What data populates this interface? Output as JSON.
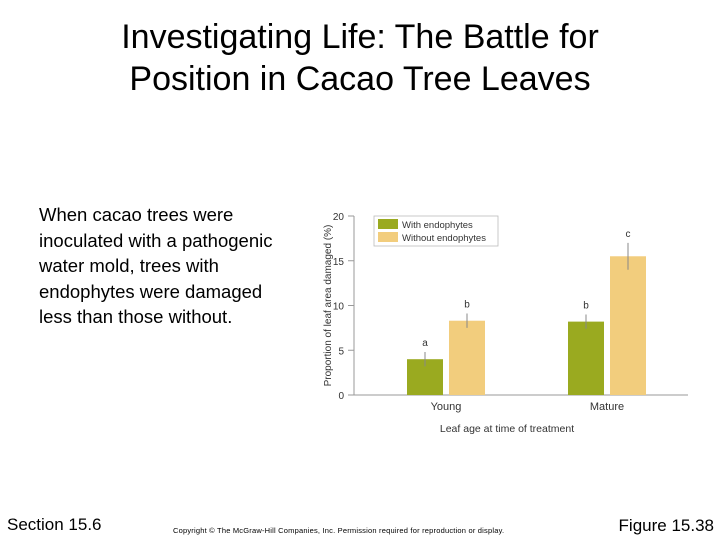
{
  "slide": {
    "title_lines": [
      "Investigating Life: The Battle for",
      "Position in Cacao Tree Leaves"
    ],
    "body": "When cacao trees were inoculated with a pathogenic water mold, trees with endophytes were damaged less than those without.",
    "section": "Section 15.6",
    "copyright": "Copyright © The McGraw-Hill Companies, Inc. Permission required for reproduction or display.",
    "figure": "Figure 15.38"
  },
  "chart_data": {
    "type": "bar",
    "categories": [
      "Young",
      "Mature"
    ],
    "series": [
      {
        "name": "With endophytes",
        "color": "#9aaa20",
        "values": [
          4.0,
          8.2
        ],
        "errors": [
          0.8,
          0.8
        ],
        "letters": [
          "a",
          "b"
        ]
      },
      {
        "name": "Without endophytes",
        "color": "#f2cd7d",
        "values": [
          8.3,
          15.5
        ],
        "errors": [
          0.8,
          1.5
        ],
        "letters": [
          "b",
          "c"
        ]
      }
    ],
    "xlabel": "Leaf age at time of treatment",
    "ylabel": "Proportion of leaf area damaged (%)",
    "ylim": [
      0,
      20
    ],
    "yticks": [
      0,
      5,
      10,
      15,
      20
    ],
    "legend_position": "top-left",
    "grid": false
  }
}
